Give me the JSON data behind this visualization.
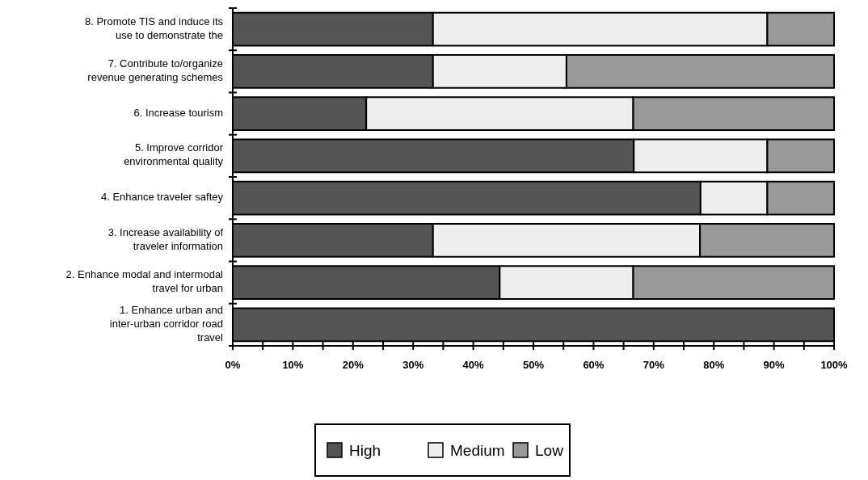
{
  "chart_data": {
    "type": "bar",
    "orientation": "horizontal",
    "stacked": true,
    "categories": [
      "8. Promote TIS and induce its use to demonstrate the",
      "7. Contribute to/organize revenue generating schemes",
      "6. Increase tourism",
      "5. Improve corridor environmental quality",
      "4. Enhance traveler saftey",
      "3. Increase availability of traveler information",
      "2. Enhance modal and intermodal travel for urban",
      "1. Enhance urban and inter-urban corridor road travel"
    ],
    "series": [
      {
        "name": "High",
        "color": "#555555",
        "values": [
          33.3,
          33.3,
          22.2,
          66.7,
          77.8,
          33.3,
          44.4,
          100
        ]
      },
      {
        "name": "Medium",
        "color": "#eeeeee",
        "values": [
          55.6,
          22.2,
          44.4,
          22.2,
          11.1,
          44.4,
          22.2,
          0
        ]
      },
      {
        "name": "Low",
        "color": "#999999",
        "values": [
          11.1,
          44.5,
          33.4,
          11.1,
          11.1,
          22.3,
          33.4,
          0
        ]
      }
    ],
    "xlim": [
      0,
      100
    ],
    "xticks": [
      {
        "value": 0,
        "label": "0%"
      },
      {
        "value": 5,
        "label": null
      },
      {
        "value": 10,
        "label": "10%"
      },
      {
        "value": 15,
        "label": null
      },
      {
        "value": 20,
        "label": "20%"
      },
      {
        "value": 25,
        "label": null
      },
      {
        "value": 30,
        "label": "30%"
      },
      {
        "value": 35,
        "label": null
      },
      {
        "value": 40,
        "label": "40%"
      },
      {
        "value": 45,
        "label": null
      },
      {
        "value": 50,
        "label": "50%"
      },
      {
        "value": 55,
        "label": null
      },
      {
        "value": 60,
        "label": "60%"
      },
      {
        "value": 65,
        "label": null
      },
      {
        "value": 70,
        "label": "70%"
      },
      {
        "value": 75,
        "label": null
      },
      {
        "value": 80,
        "label": "80%"
      },
      {
        "value": 85,
        "label": null
      },
      {
        "value": 90,
        "label": "90%"
      },
      {
        "value": 95,
        "label": null
      },
      {
        "value": 100,
        "label": "100%"
      }
    ],
    "grid": false,
    "legend": "bottom"
  }
}
